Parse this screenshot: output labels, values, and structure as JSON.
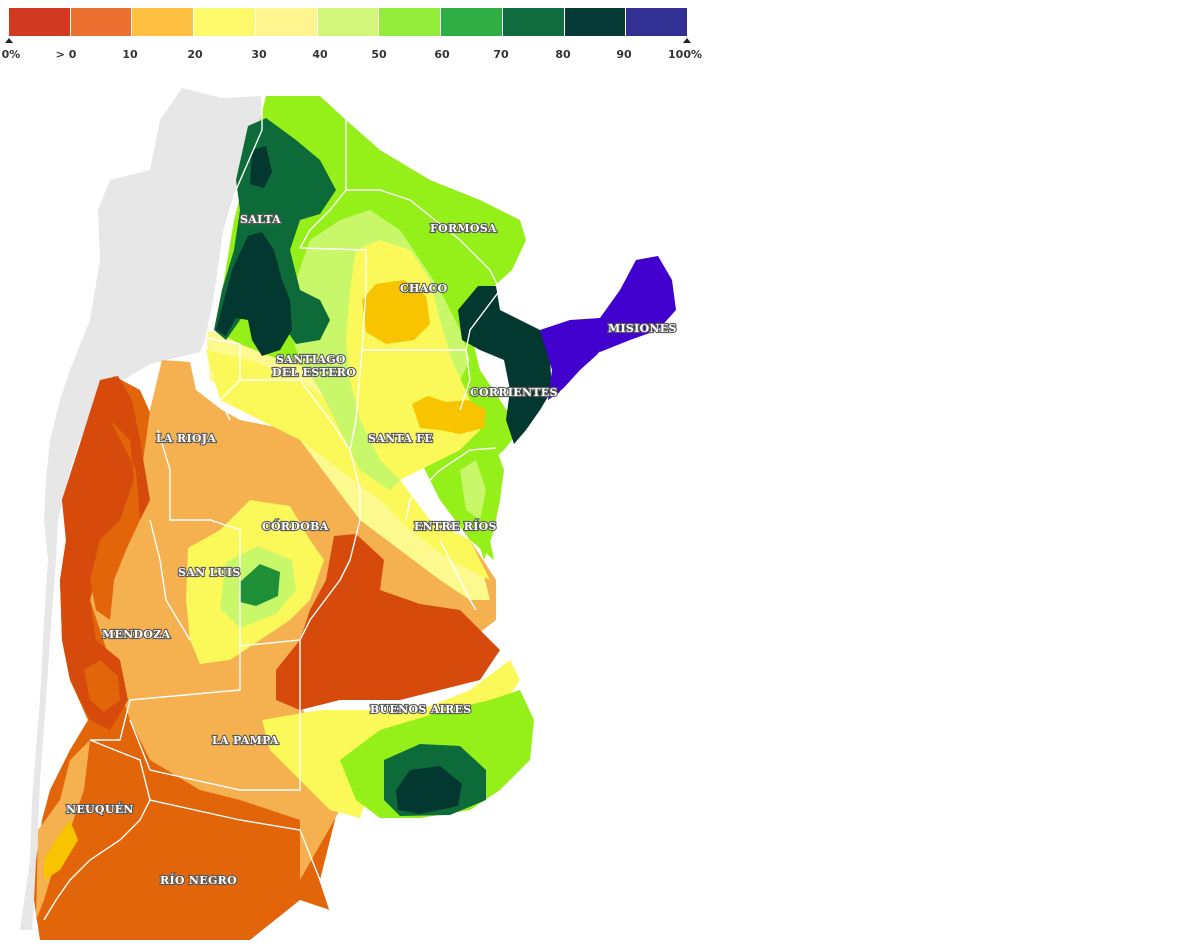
{
  "legend": {
    "colors": [
      "#d13a21",
      "#ec7030",
      "#fdc040",
      "#fcfa6a",
      "#fff58e",
      "#d2f77a",
      "#93ec3a",
      "#2eae45",
      "#106c3e",
      "#063a36",
      "#323092"
    ],
    "ticks": [
      "0%",
      "> 0",
      "10",
      "20",
      "30",
      "40",
      "50",
      "60",
      "70",
      "80",
      "90",
      "100%"
    ]
  },
  "map": {
    "palette": {
      "neighbor": "#e7e7e7",
      "d_red": "#d64a0c",
      "d_orange": "#e2650a",
      "d_orange2": "#f0a24a",
      "d_lt_orange": "#f5b050",
      "d_yellow_orange": "#f8c400",
      "d_yellow": "#fbf85a",
      "d_lt_yellow": "#fcfa8f",
      "d_yellowgreen": "#c9f76a",
      "d_lime": "#94f018",
      "d_green": "#1f8f37",
      "d_darkgreen": "#0d6b3a",
      "d_darkest": "#02382f",
      "d_violet": "#4200cf",
      "border": "#ffffff"
    },
    "provinces": [
      {
        "id": "salta",
        "label": "SALTA"
      },
      {
        "id": "formosa",
        "label": "FORMOSA"
      },
      {
        "id": "chaco",
        "label": "CHACO"
      },
      {
        "id": "misiones",
        "label": "MISIONES"
      },
      {
        "id": "santiago",
        "label": "SANTIAGO",
        "label2": "DEL ESTERO"
      },
      {
        "id": "corrientes",
        "label": "CORRIENTES"
      },
      {
        "id": "larioja",
        "label": "LA RIOJA"
      },
      {
        "id": "santafe",
        "label": "SANTA FE"
      },
      {
        "id": "cordoba",
        "label": "CÓRDOBA"
      },
      {
        "id": "entrerios",
        "label": "ENTRE RÍOS"
      },
      {
        "id": "sanluis",
        "label": "SAN LUIS"
      },
      {
        "id": "mendoza",
        "label": "MENDOZA"
      },
      {
        "id": "buenosaires",
        "label": "BUENOS AIRES"
      },
      {
        "id": "lapampa",
        "label": "LA PAMPA"
      },
      {
        "id": "neuquen",
        "label": "NEUQUÉN"
      },
      {
        "id": "rionegro",
        "label": "RÍO NEGRO"
      }
    ]
  }
}
